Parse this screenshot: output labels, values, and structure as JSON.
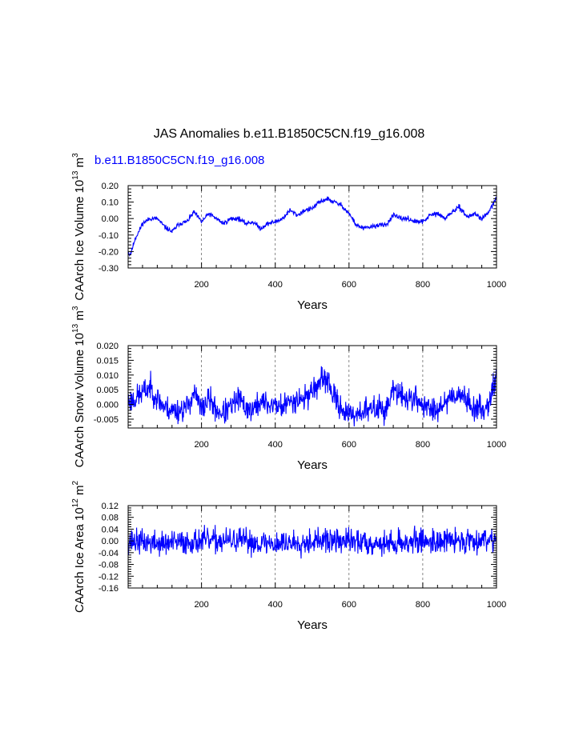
{
  "title": "JAS Anomalies b.e11.B1850C5CN.f19_g16.008",
  "subtitle": "b.e11.B1850C5CN.f19_g16.008",
  "series_color": "#0000ff",
  "chart_data": [
    {
      "type": "line",
      "name": "ice-volume",
      "ylabel": "CAArch Ice Volume 10",
      "ylabel_exp": "13",
      "ylabel_unit": " m",
      "ylabel_unit_exp": "3",
      "xlabel": "Years",
      "xlim": [
        1,
        1000
      ],
      "ylim": [
        -0.3,
        0.2
      ],
      "xticks": [
        200,
        400,
        600,
        800,
        1000
      ],
      "xtick_labels": [
        "200",
        "400",
        "600",
        "800",
        "1000"
      ],
      "yticks": [
        0.2,
        0.1,
        0.0,
        -0.1,
        -0.2,
        -0.3
      ],
      "ytick_labels": [
        "0.20",
        "0.10",
        "0.00",
        "-0.10",
        "-0.20",
        "-0.30"
      ],
      "grid_x": true,
      "anchor_years": [
        1,
        5,
        10,
        20,
        30,
        40,
        60,
        80,
        100,
        120,
        140,
        160,
        180,
        200,
        220,
        240,
        260,
        280,
        300,
        320,
        340,
        360,
        380,
        400,
        420,
        440,
        460,
        480,
        500,
        520,
        540,
        560,
        580,
        600,
        620,
        640,
        660,
        680,
        700,
        720,
        740,
        760,
        780,
        800,
        820,
        840,
        860,
        880,
        900,
        920,
        940,
        960,
        980,
        1000
      ],
      "anchor_values": [
        -0.2,
        -0.22,
        -0.2,
        -0.12,
        -0.08,
        -0.03,
        0.0,
        0.0,
        -0.05,
        -0.08,
        -0.03,
        -0.02,
        0.04,
        -0.02,
        0.03,
        0.0,
        -0.03,
        0.0,
        0.0,
        -0.03,
        -0.02,
        -0.06,
        -0.03,
        -0.02,
        0.0,
        0.05,
        0.02,
        0.05,
        0.06,
        0.1,
        0.12,
        0.1,
        0.08,
        0.03,
        -0.04,
        -0.06,
        -0.05,
        -0.04,
        -0.04,
        0.02,
        0.0,
        0.0,
        -0.02,
        -0.02,
        0.02,
        0.03,
        0.0,
        0.04,
        0.07,
        0.01,
        0.03,
        0.0,
        0.04,
        0.13
      ],
      "noise": 0.012,
      "seed": 11
    },
    {
      "type": "line",
      "name": "snow-volume",
      "ylabel": "CAArch Snow Volume 10",
      "ylabel_exp": "13",
      "ylabel_unit": " m",
      "ylabel_unit_exp": "3",
      "xlabel": "Years",
      "xlim": [
        1,
        1000
      ],
      "ylim": [
        -0.008,
        0.02
      ],
      "xticks": [
        200,
        400,
        600,
        800,
        1000
      ],
      "xtick_labels": [
        "200",
        "400",
        "600",
        "800",
        "1000"
      ],
      "yticks": [
        0.02,
        0.015,
        0.01,
        0.005,
        0.0,
        -0.005
      ],
      "ytick_labels": [
        "0.020",
        "0.015",
        "0.010",
        "0.005",
        "0.000",
        "-0.005"
      ],
      "grid_x": true,
      "anchor_years": [
        1,
        20,
        40,
        60,
        80,
        100,
        120,
        140,
        160,
        180,
        200,
        220,
        240,
        260,
        280,
        300,
        320,
        340,
        360,
        380,
        400,
        420,
        440,
        460,
        480,
        500,
        520,
        540,
        560,
        580,
        600,
        620,
        640,
        660,
        680,
        700,
        720,
        740,
        760,
        780,
        800,
        820,
        840,
        860,
        880,
        900,
        920,
        940,
        960,
        980,
        1000
      ],
      "anchor_values": [
        0.001,
        0.002,
        0.004,
        0.006,
        0.002,
        -0.001,
        -0.002,
        -0.002,
        -0.001,
        0.004,
        -0.002,
        0.002,
        -0.002,
        -0.003,
        -0.001,
        0.002,
        -0.001,
        -0.002,
        0.001,
        0.0,
        0.0,
        -0.001,
        0.001,
        0.002,
        0.002,
        0.005,
        0.007,
        0.009,
        0.002,
        -0.001,
        -0.004,
        -0.003,
        -0.002,
        -0.002,
        -0.001,
        -0.002,
        0.005,
        0.003,
        0.002,
        0.002,
        0.0,
        -0.002,
        -0.001,
        0.001,
        0.003,
        0.004,
        0.001,
        -0.001,
        -0.002,
        0.001,
        0.01
      ],
      "noise": 0.0035,
      "seed": 23
    },
    {
      "type": "line",
      "name": "ice-area",
      "ylabel": "CAArch Ice Area 10",
      "ylabel_exp": "12",
      "ylabel_unit": " m",
      "ylabel_unit_exp": "2",
      "xlabel": "Years",
      "xlim": [
        1,
        1000
      ],
      "ylim": [
        -0.16,
        0.12
      ],
      "xticks": [
        200,
        400,
        600,
        800,
        1000
      ],
      "xtick_labels": [
        "200",
        "400",
        "600",
        "800",
        "1000"
      ],
      "yticks": [
        0.12,
        0.08,
        0.04,
        0.0,
        -0.04,
        -0.08,
        -0.12,
        -0.16
      ],
      "ytick_labels": [
        "0.12",
        "0.08",
        "0.04",
        "0.00",
        "-0.04",
        "-0.08",
        "-0.12",
        "-0.16"
      ],
      "grid_x": true,
      "anchor_years": [
        1,
        100,
        200,
        300,
        400,
        500,
        600,
        700,
        800,
        900,
        1000
      ],
      "anchor_values": [
        0.0,
        -0.01,
        0.0,
        0.0,
        -0.01,
        0.0,
        0.0,
        -0.01,
        0.0,
        0.0,
        0.01
      ],
      "noise": 0.035,
      "seed": 37
    }
  ]
}
